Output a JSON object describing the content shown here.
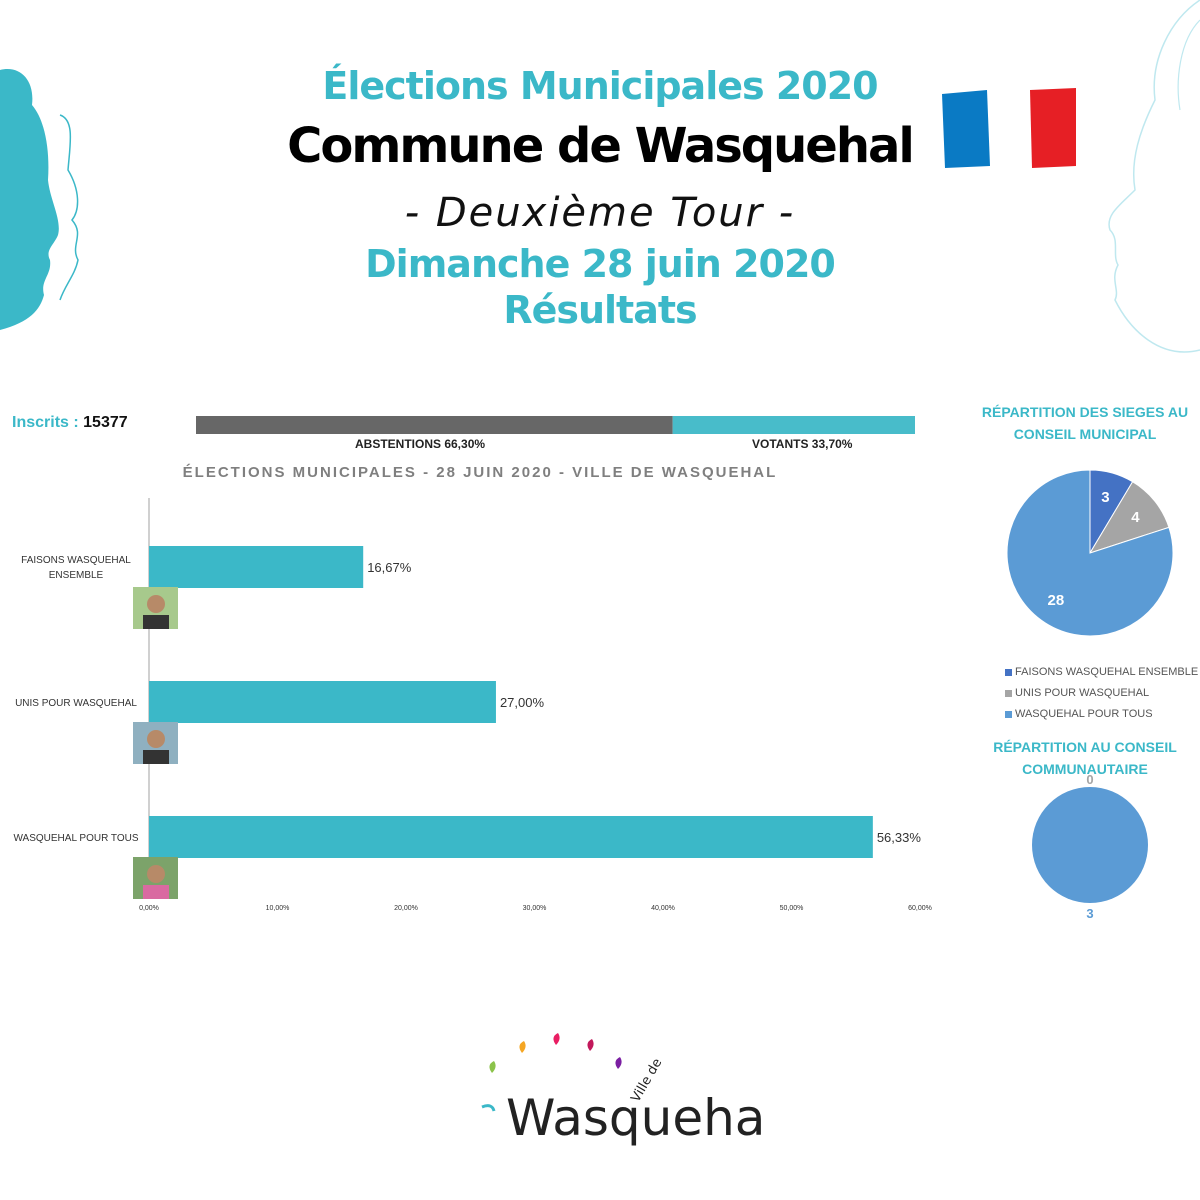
{
  "header": {
    "line1": "Élections Municipales 2020",
    "line2": "Commune de Wasquehal",
    "line3": "- Deuxième Tour -",
    "line4": "Dimanche 28 juin 2020",
    "line5": "Résultats"
  },
  "colors": {
    "accent": "#3bb8c8",
    "abstention": "#676767",
    "votants": "#48bcca",
    "flag_blue": "#0a7ac4",
    "flag_red": "#e61f25",
    "pie_dark": "#4472c4",
    "pie_gray": "#a5a5a5",
    "pie_light": "#5b9bd5"
  },
  "turnout": {
    "inscrits_label": "Inscrits :",
    "inscrits_value": "15377",
    "abstention_label": "ABSTENTIONS 66,30%",
    "votants_label": "VOTANTS 33,70%",
    "abstention_pct": 66.3,
    "votants_pct": 33.7
  },
  "chart_data": [
    {
      "type": "bar",
      "orientation": "horizontal",
      "title": "ÉLECTIONS MUNICIPALES - 28 JUIN 2020 - VILLE DE WASQUEHAL",
      "categories": [
        "FAISONS WASQUEHAL ENSEMBLE",
        "UNIS POUR WASQUEHAL",
        "WASQUEHAL POUR TOUS"
      ],
      "values": [
        16.67,
        27.0,
        56.33
      ],
      "data_labels": [
        "16,67%",
        "27,00%",
        "56,33%"
      ],
      "xlim": [
        0,
        60
      ],
      "xticks": [
        "0,00%",
        "10,00%",
        "20,00%",
        "30,00%",
        "40,00%",
        "50,00%",
        "60,00%"
      ],
      "bar_color": "#3bb8c8",
      "grid": false
    },
    {
      "type": "pie",
      "title": "RÉPARTITION DES SIEGES AU CONSEIL MUNICIPAL",
      "labels": [
        "FAISONS WASQUEHAL ENSEMBLE",
        "UNIS POUR WASQUEHAL",
        "WASQUEHAL POUR TOUS"
      ],
      "values": [
        3,
        4,
        28
      ],
      "colors": [
        "#4472c4",
        "#a5a5a5",
        "#5b9bd5"
      ],
      "legend": "bottom"
    },
    {
      "type": "pie",
      "title": "RÉPARTITION AU CONSEIL COMMUNAUTAIRE",
      "values": [
        0,
        3
      ],
      "data_labels": [
        "0",
        "3"
      ],
      "colors": [
        "#a5a5a5",
        "#5b9bd5"
      ]
    }
  ],
  "logo": {
    "prefix": "Ville de",
    "name": "Wasquehal"
  }
}
